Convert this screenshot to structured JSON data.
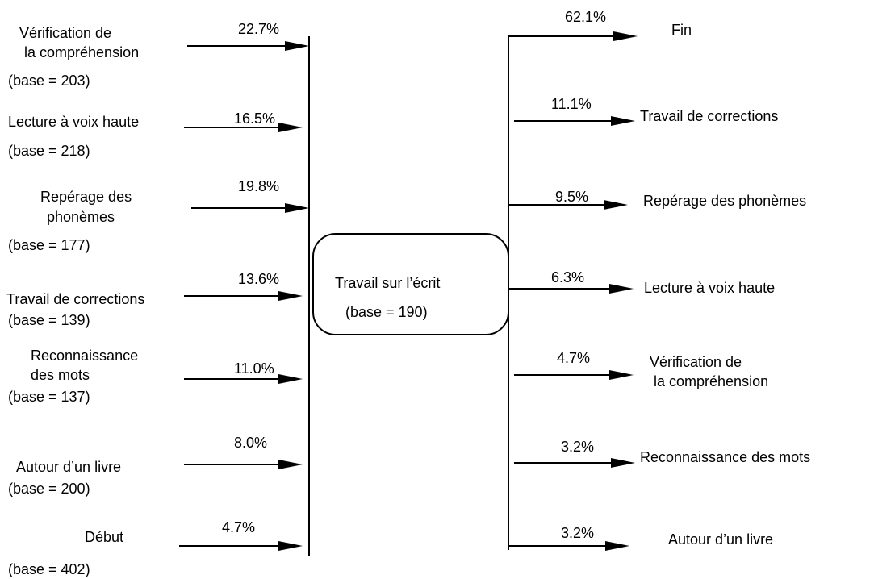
{
  "center": {
    "title": "Travail sur l’écrit",
    "base": "(base = 190)"
  },
  "inputs": [
    {
      "label": [
        "Vérification de",
        "la compréhension"
      ],
      "base": "(base = 203)",
      "percent": "22.7%"
    },
    {
      "label": [
        "Lecture à voix haute"
      ],
      "base": "(base = 218)",
      "percent": "16.5%"
    },
    {
      "label": [
        "Repérage des",
        "phonèmes"
      ],
      "base": "(base = 177)",
      "percent": "19.8%"
    },
    {
      "label": [
        "Travail de corrections"
      ],
      "base": "(base = 139)",
      "percent": "13.6%"
    },
    {
      "label": [
        "Reconnaissance",
        "des mots"
      ],
      "base": "(base = 137)",
      "percent": "11.0%"
    },
    {
      "label": [
        "Autour d’un livre"
      ],
      "base": "(base = 200)",
      "percent": "8.0%"
    },
    {
      "label": [
        "Début"
      ],
      "base": "(base = 402)",
      "percent": "4.7%"
    }
  ],
  "outputs": [
    {
      "label": [
        "Fin"
      ],
      "percent": "62.1%"
    },
    {
      "label": [
        "Travail de corrections"
      ],
      "percent": "11.1%"
    },
    {
      "label": [
        "Repérage des phonèmes"
      ],
      "percent": "9.5%"
    },
    {
      "label": [
        "Lecture à voix haute"
      ],
      "percent": "6.3%"
    },
    {
      "label": [
        "Vérification de",
        "la compréhension"
      ],
      "percent": "4.7%"
    },
    {
      "label": [
        "Reconnaissance des mots"
      ],
      "percent": "3.2%"
    },
    {
      "label": [
        "Autour d’un livre"
      ],
      "percent": "3.2%"
    }
  ]
}
